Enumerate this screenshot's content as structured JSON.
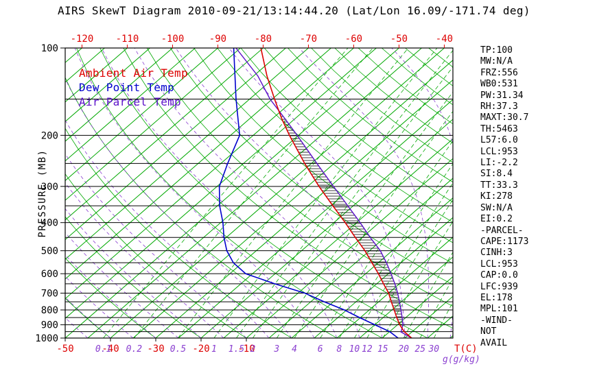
{
  "title": "AIRS SkewT Diagram 2010-09-21/13:14:44.20 (Lat/Lon 16.09/-171.74 deg)",
  "legend": [
    {
      "label": "Ambient Air Temp",
      "color": "#dd0000"
    },
    {
      "label": "Dew Point Temp",
      "color": "#0000cc"
    },
    {
      "label": "Air Parcel Temp",
      "color": "#5a10c8"
    }
  ],
  "colors": {
    "temperature": "#dd0000",
    "dewpoint": "#0000cc",
    "parcel": "#5a10c8",
    "isotherm_green": "#00a800",
    "moist_purple": "#8a3fd0",
    "axis_black": "#000000"
  },
  "axes": {
    "pressure_label": "PRESSURE (MB)",
    "pressure_ticks": [
      100,
      200,
      300,
      400,
      500,
      600,
      700,
      800,
      900,
      1000
    ],
    "top_temp_ticks": [
      -120,
      -110,
      -100,
      -90,
      -80,
      -70,
      -60,
      -50,
      -40
    ],
    "bottom_temp_ticks": [
      -50,
      -40,
      -30,
      -20,
      -10
    ],
    "temp_label": "T(C)",
    "mixing_ratio_ticks": [
      0.1,
      0.2,
      0.5,
      1,
      1.5,
      2,
      3,
      4,
      6,
      8,
      10,
      12,
      15,
      20,
      25,
      30
    ],
    "mixing_ratio_label": "g(g/kg)"
  },
  "stats": [
    "TP:100",
    "MW:N/A",
    "FRZ:556",
    "WB0:531",
    "PW:31.34",
    "RH:37.3",
    "MAXT:30.7",
    "TH:5463",
    "L57:6.0",
    "LCL:953",
    "LI:-2.2",
    "SI:8.4",
    "TT:33.3",
    "KI:278",
    "SW:N/A",
    "EI:0.2",
    "-PARCEL-",
    "CAPE:1173",
    "CINH:3",
    "LCL:953",
    "CAP:0.0",
    "LFC:939",
    "EL:178",
    "MPL:101",
    "-WIND-",
    "NOT",
    "AVAIL"
  ],
  "chart_data": {
    "type": "line",
    "projection": "skewT-logP",
    "pressure_range_mb": [
      100,
      1000
    ],
    "temp_at_bottom_left_C": -50,
    "grid": {
      "isotherm_step_C": 5,
      "dry_adiabat_step_C": 10,
      "moist_adiabat_step_C": 5,
      "pressure_line_step_mb": 50
    },
    "series": [
      {
        "name": "Ambient Air Temp",
        "color": "#dd0000",
        "points": [
          [
            1000,
            26.5
          ],
          [
            950,
            23.2
          ],
          [
            900,
            20.5
          ],
          [
            850,
            18.0
          ],
          [
            800,
            15.5
          ],
          [
            750,
            12.8
          ],
          [
            700,
            10.0
          ],
          [
            650,
            6.5
          ],
          [
            600,
            2.8
          ],
          [
            550,
            -1.4
          ],
          [
            500,
            -6.0
          ],
          [
            450,
            -11.5
          ],
          [
            400,
            -17.5
          ],
          [
            350,
            -24.5
          ],
          [
            300,
            -32.5
          ],
          [
            250,
            -41.5
          ],
          [
            200,
            -52.0
          ],
          [
            175,
            -58.0
          ],
          [
            150,
            -64.5
          ],
          [
            125,
            -72.0
          ],
          [
            100,
            -80.5
          ]
        ]
      },
      {
        "name": "Dew Point Temp",
        "color": "#0000cc",
        "points": [
          [
            1000,
            23.5
          ],
          [
            950,
            20.0
          ],
          [
            900,
            15.0
          ],
          [
            850,
            9.8
          ],
          [
            800,
            4.5
          ],
          [
            750,
            -2.0
          ],
          [
            700,
            -8.5
          ],
          [
            650,
            -17.5
          ],
          [
            600,
            -26.5
          ],
          [
            550,
            -32.0
          ],
          [
            500,
            -36.5
          ],
          [
            450,
            -40.5
          ],
          [
            400,
            -44.5
          ],
          [
            350,
            -49.5
          ],
          [
            300,
            -54.5
          ],
          [
            250,
            -58.5
          ],
          [
            200,
            -63.0
          ],
          [
            150,
            -73.0
          ],
          [
            100,
            -86.5
          ]
        ]
      },
      {
        "name": "Air Parcel Temp",
        "color": "#5a10c8",
        "points": [
          [
            1000,
            26.5
          ],
          [
            953,
            22.6
          ],
          [
            900,
            21.2
          ],
          [
            850,
            19.2
          ],
          [
            800,
            17.0
          ],
          [
            750,
            14.6
          ],
          [
            700,
            12.0
          ],
          [
            650,
            9.0
          ],
          [
            600,
            5.6
          ],
          [
            550,
            1.8
          ],
          [
            500,
            -2.6
          ],
          [
            450,
            -8.2
          ],
          [
            400,
            -14.2
          ],
          [
            350,
            -21.2
          ],
          [
            300,
            -29.3
          ],
          [
            250,
            -38.8
          ],
          [
            200,
            -50.3
          ],
          [
            175,
            -57.3
          ],
          [
            150,
            -65.5
          ],
          [
            125,
            -74.0
          ],
          [
            100,
            -86.0
          ]
        ]
      }
    ],
    "cape_hatch_between": [
      "Ambient Air Temp",
      "Air Parcel Temp"
    ]
  }
}
